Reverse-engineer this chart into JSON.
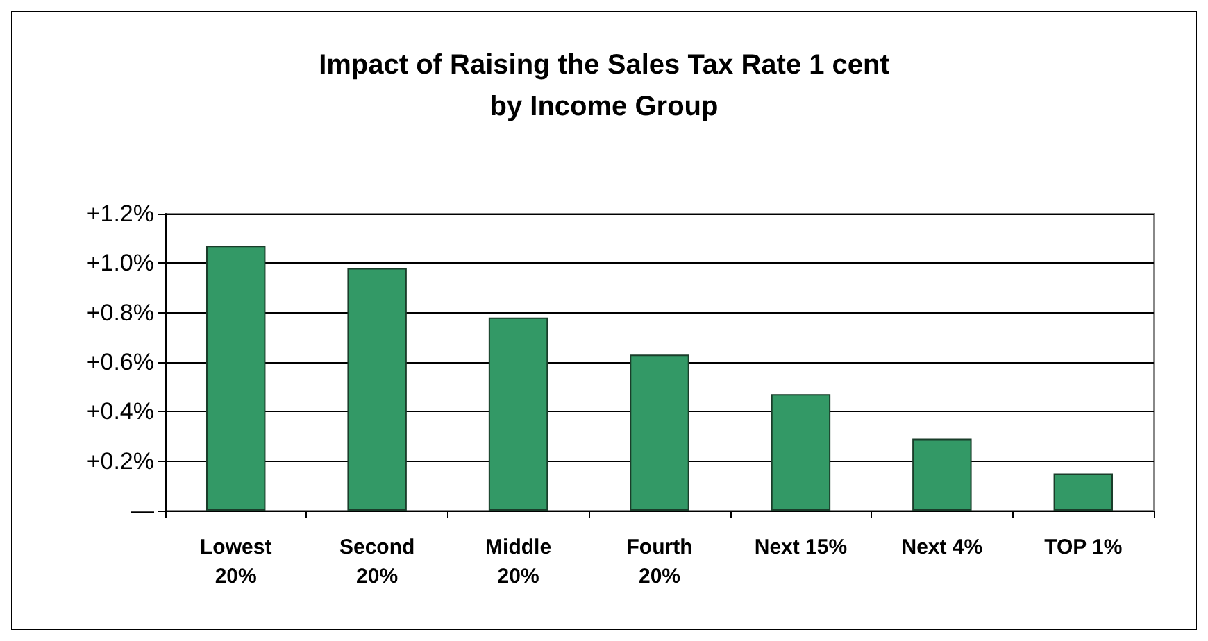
{
  "chart_data": {
    "type": "bar",
    "title": "Impact of Raising the Sales Tax Rate 1 cent\nby Income Group",
    "categories": [
      "Lowest\n20%",
      "Second\n20%",
      "Middle\n20%",
      "Fourth\n20%",
      "Next 15%",
      "Next 4%",
      "TOP 1%"
    ],
    "values": [
      1.07,
      0.98,
      0.78,
      0.63,
      0.47,
      0.29,
      0.15
    ],
    "color": "#339966",
    "ylim": [
      0,
      1.2
    ],
    "yticks": [
      {
        "value": 0,
        "label": "—"
      },
      {
        "value": 0.2,
        "label": "+0.2%"
      },
      {
        "value": 0.4,
        "label": "+0.4%"
      },
      {
        "value": 0.6,
        "label": "+0.6%"
      },
      {
        "value": 0.8,
        "label": "+0.8%"
      },
      {
        "value": 1.0,
        "label": "+1.0%"
      },
      {
        "value": 1.2,
        "label": "+1.2%"
      }
    ],
    "grid": "y"
  }
}
